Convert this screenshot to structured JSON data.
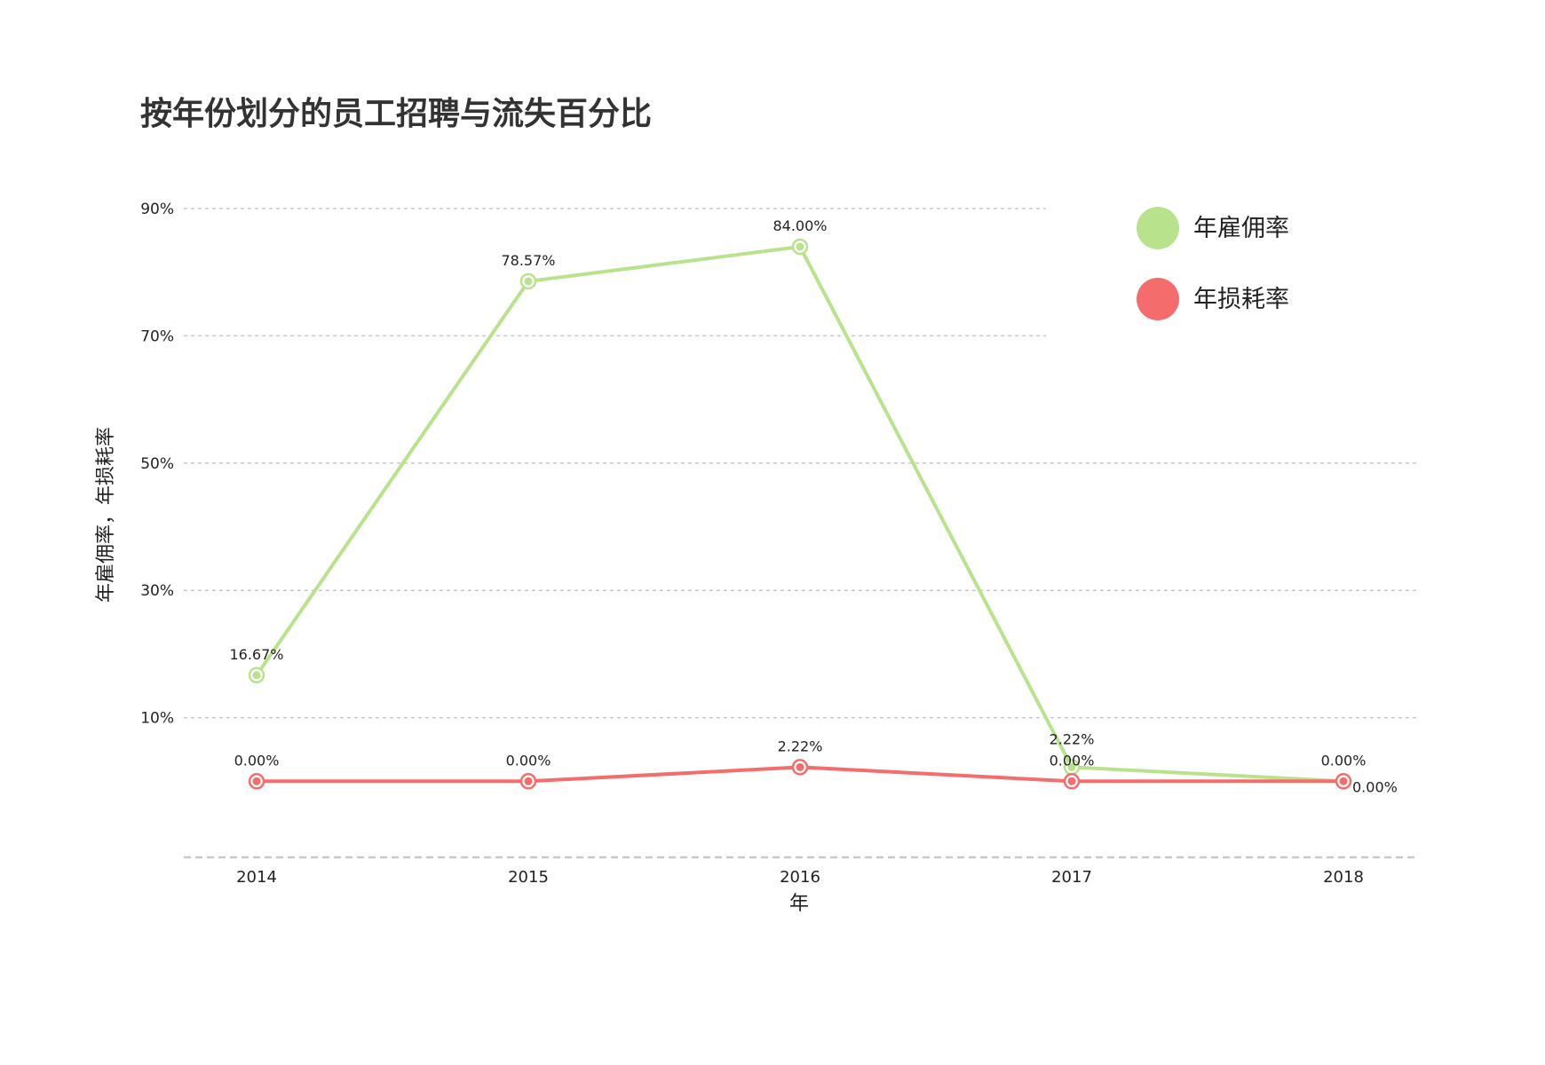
{
  "chart_data": {
    "type": "line",
    "title": "按年份划分的员工招聘与流失百分比",
    "xlabel": "年",
    "ylabel": "年雇佣率，年损耗率",
    "categories": [
      "2014",
      "2015",
      "2016",
      "2017",
      "2018"
    ],
    "y_ticks": [
      "90%",
      "70%",
      "50%",
      "30%",
      "10%"
    ],
    "y_tick_values": [
      90,
      70,
      50,
      30,
      10
    ],
    "ylim": [
      -12,
      90
    ],
    "grid": true,
    "legend_position": "top-right",
    "series": [
      {
        "name": "年雇佣率",
        "color": "#b9e28c",
        "values": [
          16.67,
          78.57,
          84.0,
          2.22,
          0.0
        ],
        "labels": [
          "16.67%",
          "78.57%",
          "84.00%",
          "2.22%",
          "0.00%"
        ]
      },
      {
        "name": "年损耗率",
        "color": "#f56c6c",
        "values": [
          0.0,
          0.0,
          2.22,
          0.0,
          0.0
        ],
        "labels": [
          "0.00%",
          "0.00%",
          "2.22%",
          "0.00%",
          "0.00%"
        ]
      }
    ]
  }
}
